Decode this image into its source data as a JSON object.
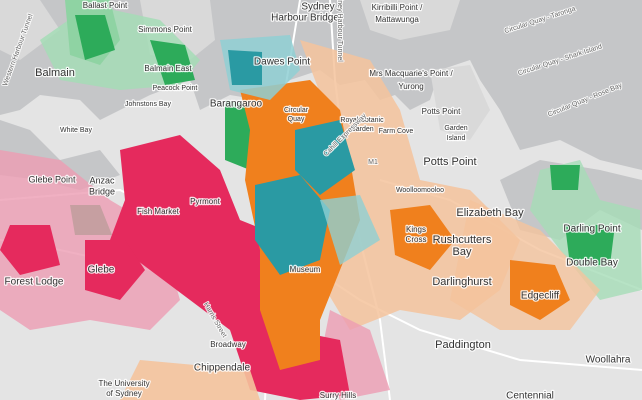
{
  "map": {
    "places": [
      "Ballast Point",
      "Simmons Point",
      "Balmain",
      "Balmain East",
      "Peacock Point",
      "Johnstons Bay",
      "White Bay",
      "Dawes Point",
      "Barangaroo",
      "Sydney",
      "Harbour Bridge",
      "Kirribilli Point /",
      "Mattawunga",
      "Mrs Macquarie's Point /",
      "Yurong",
      "Potts Point",
      "Garden",
      "Island",
      "Circular",
      "Quay",
      "Royal Botanic",
      "Garden",
      "Farm Cove",
      "Potts Point",
      "Elizabeth Bay",
      "Rushcutters",
      "Bay",
      "Kings",
      "Cross",
      "Darling Point",
      "Double Bay",
      "Darlinghurst",
      "Edgecliff",
      "Paddington",
      "Woollahra",
      "Centennial",
      "Glebe Point",
      "Anzac",
      "Bridge",
      "Glebe",
      "Forest Lodge",
      "Pyrmont",
      "Fish Market",
      "Broadway",
      "Chippendale",
      "The University",
      "of Sydney",
      "Surry Hills",
      "Museum",
      "Woolloomooloo"
    ],
    "roads": [
      "Western Harbour Tunnel",
      "Sydney Harbour Tunnel",
      "Circular Quay - Taronga",
      "Circular Quay - Shark Island",
      "Circular Quay - Rose Bay",
      "M1",
      "Cahill Expressway",
      "Harris Street"
    ]
  }
}
